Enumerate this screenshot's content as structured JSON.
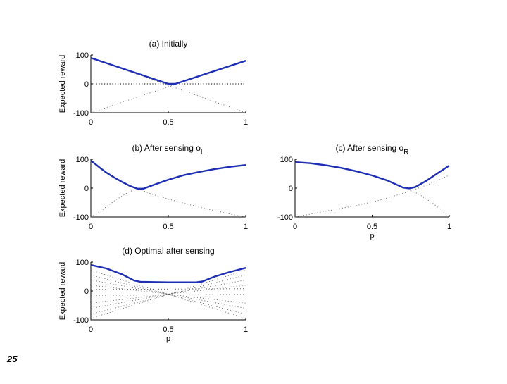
{
  "slide_number": "25",
  "chart_data": [
    {
      "id": "a",
      "type": "line",
      "title": "(a) Initially",
      "title_sub": "",
      "ylabel": "Expected reward",
      "xlabel": "",
      "xlim": [
        0,
        1
      ],
      "ylim": [
        -100,
        100
      ],
      "x_ticks": [
        "0",
        "0.5",
        "1"
      ],
      "y_ticks": [
        "100",
        "0",
        "-100"
      ],
      "zero_line": true,
      "optimal": {
        "x": [
          0,
          0.5,
          0.545,
          1
        ],
        "y": [
          90,
          0,
          0,
          80
        ]
      },
      "dotted": [
        {
          "x": [
            0,
            1
          ],
          "y": [
            90,
            -100
          ]
        },
        {
          "x": [
            0,
            1
          ],
          "y": [
            -100,
            80
          ]
        }
      ]
    },
    {
      "id": "b",
      "type": "line",
      "title": "(b) After sensing o",
      "title_sub": "L",
      "ylabel": "Expected reward",
      "xlabel": "",
      "xlim": [
        0,
        1
      ],
      "ylim": [
        -100,
        100
      ],
      "x_ticks": [
        "0",
        "0.5",
        "1"
      ],
      "y_ticks": [
        "100",
        "0",
        "-100"
      ],
      "zero_line": false,
      "optimal": {
        "x": [
          0,
          0.02,
          0.06,
          0.1,
          0.15,
          0.2,
          0.25,
          0.3,
          0.34,
          0.4,
          0.5,
          0.6,
          0.7,
          0.8,
          0.9,
          1
        ],
        "y": [
          95,
          87,
          70,
          54,
          37,
          22,
          8,
          -2,
          -2,
          10,
          29,
          45,
          56,
          66,
          74,
          80
        ]
      },
      "dotted": [
        {
          "x": [
            0,
            0.1,
            0.2,
            0.3,
            0.4,
            0.5,
            0.6,
            0.7,
            0.8,
            0.9,
            1
          ],
          "y": [
            95,
            54,
            22,
            -2,
            -22,
            -38,
            -52,
            -66,
            -78,
            -90,
            -100
          ]
        },
        {
          "x": [
            0,
            0.05,
            0.1,
            0.15,
            0.2,
            0.25,
            0.3,
            0.35
          ],
          "y": [
            -100,
            -85,
            -65,
            -45,
            -28,
            -12,
            -2,
            3
          ]
        }
      ]
    },
    {
      "id": "c",
      "type": "line",
      "title": "(c) After sensing o",
      "title_sub": "R",
      "ylabel": "",
      "xlabel": "p",
      "xlim": [
        0,
        1
      ],
      "ylim": [
        -100,
        100
      ],
      "x_ticks": [
        "0",
        "0.5",
        "1"
      ],
      "y_ticks": [
        "100",
        "0",
        "-100"
      ],
      "zero_line": false,
      "optimal": {
        "x": [
          0,
          0.1,
          0.2,
          0.3,
          0.4,
          0.5,
          0.6,
          0.7,
          0.74,
          0.78,
          0.85,
          0.92,
          1
        ],
        "y": [
          90,
          86,
          79,
          70,
          58,
          44,
          26,
          2,
          -1,
          4,
          25,
          50,
          78
        ]
      },
      "dotted": [
        {
          "x": [
            0,
            0.1,
            0.2,
            0.3,
            0.4,
            0.5,
            0.6,
            0.7,
            0.8,
            0.9,
            1
          ],
          "y": [
            -100,
            -90,
            -80,
            -70,
            -60,
            -48,
            -34,
            -18,
            0,
            20,
            45
          ]
        },
        {
          "x": [
            0.7,
            0.8,
            0.9,
            1
          ],
          "y": [
            2,
            -20,
            -55,
            -100
          ]
        }
      ]
    },
    {
      "id": "d",
      "type": "line",
      "title": "(d) Optimal after sensing",
      "title_sub": "",
      "ylabel": "Expected reward",
      "xlabel": "p",
      "xlim": [
        0,
        1
      ],
      "ylim": [
        -100,
        100
      ],
      "x_ticks": [
        "0",
        "0.5",
        "1"
      ],
      "y_ticks": [
        "100",
        "0",
        "-100"
      ],
      "zero_line": false,
      "optimal": {
        "x": [
          0,
          0.1,
          0.2,
          0.28,
          0.32,
          0.4,
          0.5,
          0.6,
          0.68,
          0.72,
          0.8,
          0.9,
          1
        ],
        "y": [
          90,
          78,
          58,
          36,
          32,
          31,
          30,
          30,
          30,
          33,
          50,
          66,
          80
        ]
      },
      "dotted": [
        {
          "x": [
            0,
            1
          ],
          "y": [
            72,
            -95
          ]
        },
        {
          "x": [
            0,
            1
          ],
          "y": [
            55,
            -80
          ]
        },
        {
          "x": [
            0,
            1
          ],
          "y": [
            38,
            -60
          ]
        },
        {
          "x": [
            0,
            1
          ],
          "y": [
            20,
            -42
          ]
        },
        {
          "x": [
            0,
            1
          ],
          "y": [
            -95,
            72
          ]
        },
        {
          "x": [
            0,
            1
          ],
          "y": [
            -80,
            55
          ]
        },
        {
          "x": [
            0,
            1
          ],
          "y": [
            -60,
            38
          ]
        },
        {
          "x": [
            0,
            1
          ],
          "y": [
            -42,
            20
          ]
        },
        {
          "x": [
            0,
            1
          ],
          "y": [
            5,
            8
          ]
        },
        {
          "x": [
            0,
            1
          ],
          "y": [
            -15,
            -12
          ]
        }
      ]
    }
  ]
}
